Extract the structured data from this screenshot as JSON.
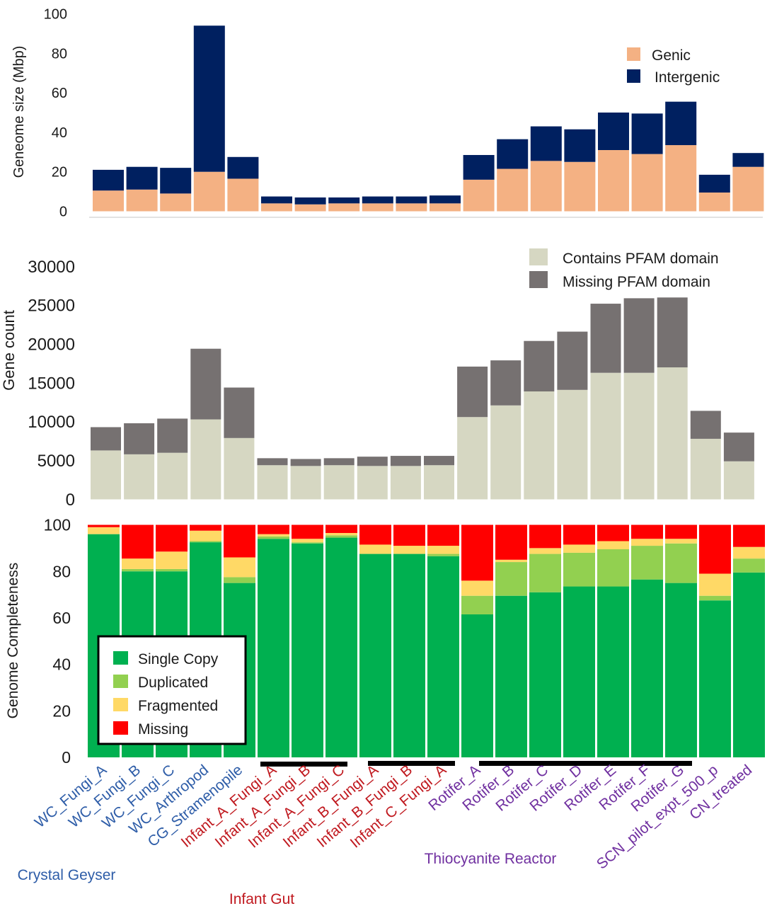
{
  "colors": {
    "genic": "#F4B183",
    "intergenic": "#002060",
    "pfam_contains": "#D6D7C2",
    "pfam_missing": "#767171",
    "single_copy": "#00B050",
    "duplicated": "#92D050",
    "fragmented": "#FFD966",
    "missing": "#FF0000",
    "group_crystal_geyser": "#2E5DA8",
    "group_infant_gut": "#C0191F",
    "group_thiocyanite": "#7030A0",
    "axis_text": "#1a1a1a"
  },
  "samples": [
    {
      "name": "WC_Fungi_A",
      "group": "crystal"
    },
    {
      "name": "WC_Fungi_B",
      "group": "crystal"
    },
    {
      "name": "WC_Fungi_C",
      "group": "crystal"
    },
    {
      "name": "WC_Arthropod",
      "group": "crystal"
    },
    {
      "name": "CG_Stramenopile",
      "group": "crystal"
    },
    {
      "name": "Infant_A_Fungi_A",
      "group": "infant"
    },
    {
      "name": "Infant_A_Fungi_B",
      "group": "infant"
    },
    {
      "name": "Infant_A_Fungi_C",
      "group": "infant"
    },
    {
      "name": "Infant_B_Fungi_A",
      "group": "infant"
    },
    {
      "name": "Infant_B_Fungi_B",
      "group": "infant"
    },
    {
      "name": "Infant_C_Fungi_A",
      "group": "infant"
    },
    {
      "name": "Rotifer_A",
      "group": "thio"
    },
    {
      "name": "Rotifer_B",
      "group": "thio"
    },
    {
      "name": "Rotifer_C",
      "group": "thio"
    },
    {
      "name": "Rotifer_D",
      "group": "thio"
    },
    {
      "name": "Rotifer_E",
      "group": "thio"
    },
    {
      "name": "Rotifer_F",
      "group": "thio"
    },
    {
      "name": "Rotifer_G",
      "group": "thio"
    },
    {
      "name": "SCN_pilot_expt_500_p",
      "group": "thio"
    },
    {
      "name": "CN_treated",
      "group": "thio"
    }
  ],
  "group_labels": {
    "crystal": "Crystal Geyser",
    "infant": "Infant Gut",
    "thio": "Thiocyanite Reactor"
  },
  "chart_data": [
    {
      "type": "bar",
      "stacked": true,
      "ylabel": "Geneome size (Mbp)",
      "ylim": [
        0,
        100
      ],
      "yticks": [
        "0",
        "20",
        "40",
        "60",
        "80",
        "100"
      ],
      "legend_position": "top-right",
      "series": [
        {
          "name": "Genic",
          "values": [
            10.5,
            11,
            9,
            20,
            16.5,
            4,
            3.5,
            4,
            4,
            4,
            4,
            16,
            21.5,
            25.5,
            25,
            31,
            29,
            33.5,
            9.5,
            22.5
          ]
        },
        {
          "name": "Intergenic",
          "values": [
            10.5,
            11.5,
            13,
            74,
            11,
            3.5,
            3.5,
            3,
            3.5,
            3.5,
            4,
            12.5,
            15,
            17.5,
            16.5,
            19,
            20.5,
            22,
            9,
            7
          ]
        }
      ]
    },
    {
      "type": "bar",
      "stacked": true,
      "ylabel": "Gene count",
      "ylim": [
        0,
        30000
      ],
      "yticks": [
        "0",
        "5000",
        "10000",
        "15000",
        "20000",
        "25000",
        "30000"
      ],
      "legend_position": "top-right",
      "series": [
        {
          "name": "Contains PFAM domain",
          "values": [
            6300,
            5800,
            6000,
            10300,
            7900,
            4400,
            4300,
            4400,
            4300,
            4300,
            4400,
            10600,
            12100,
            13900,
            14100,
            16300,
            16300,
            17000,
            7800,
            4900
          ]
        },
        {
          "name": "Missing PFAM domain",
          "values": [
            3000,
            4000,
            4400,
            9100,
            6500,
            900,
            900,
            900,
            1200,
            1300,
            1200,
            6500,
            5800,
            6500,
            7500,
            8900,
            9600,
            9000,
            3600,
            3700
          ]
        }
      ]
    },
    {
      "type": "bar",
      "stacked": true,
      "ylabel": "Genome Completeness",
      "ylim": [
        0,
        100
      ],
      "yticks": [
        "0",
        "20",
        "40",
        "60",
        "80",
        "100"
      ],
      "legend_position": "bottom-left",
      "series": [
        {
          "name": "Single Copy",
          "values": [
            96,
            80,
            80,
            92.5,
            75,
            94,
            92,
            94.5,
            87.5,
            87.5,
            86.5,
            61.5,
            69.5,
            71,
            73.5,
            73.5,
            76.5,
            75,
            67.5,
            79.5
          ]
        },
        {
          "name": "Duplicated",
          "values": [
            0,
            1,
            1,
            0.5,
            2.5,
            1,
            0.5,
            1,
            0,
            0,
            1,
            8,
            14.5,
            16.5,
            14.5,
            16,
            14.5,
            17,
            2,
            6
          ]
        },
        {
          "name": "Fragmented",
          "values": [
            3,
            4.5,
            7.5,
            4.5,
            8.5,
            1,
            1.5,
            1,
            4,
            3.5,
            3.5,
            6.5,
            1,
            2.5,
            3.5,
            3.5,
            3,
            2,
            9.5,
            5
          ]
        },
        {
          "name": "Missing",
          "values": [
            1,
            14.5,
            11.5,
            2.5,
            14,
            4,
            6,
            3.5,
            8.5,
            9,
            9,
            24,
            15,
            10,
            8.5,
            7,
            6,
            6,
            21,
            9.5
          ]
        }
      ]
    }
  ]
}
